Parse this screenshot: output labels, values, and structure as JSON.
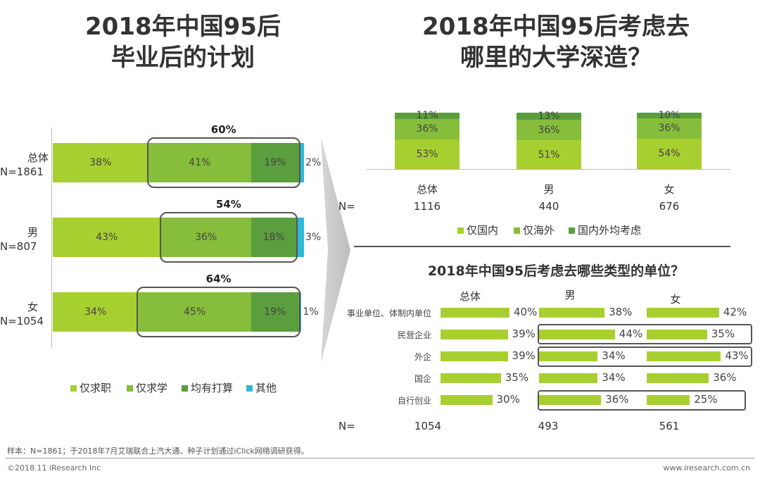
{
  "left": {
    "title_line1": "2018年中国95后",
    "title_line2": "毕业后的计划",
    "rows": [
      {
        "name": "总体",
        "n": "N=1861",
        "values": [
          38,
          41,
          19,
          2
        ],
        "labels": [
          "38%",
          "41%",
          "19%",
          "2%"
        ],
        "highlight": "60%"
      },
      {
        "name": "男",
        "n": "N=807",
        "values": [
          43,
          36,
          18,
          3
        ],
        "labels": [
          "43%",
          "36%",
          "18%",
          "3%"
        ],
        "highlight": "54%"
      },
      {
        "name": "女",
        "n": "N=1054",
        "values": [
          34,
          45,
          19,
          1
        ],
        "labels": [
          "34%",
          "45%",
          "19%",
          "1%"
        ],
        "highlight": "64%"
      }
    ],
    "legend": [
      "仅求职",
      "仅求学",
      "均有打算",
      "其他"
    ]
  },
  "right_top": {
    "title_line1": "2018年中国95后考虑去",
    "title_line2": "哪里的大学深造？",
    "columns": [
      {
        "name": "总体",
        "n": "1116",
        "values": [
          53,
          36,
          11
        ],
        "labels": [
          "53%",
          "36%",
          "11%"
        ]
      },
      {
        "name": "男",
        "n": "440",
        "values": [
          51,
          36,
          13
        ],
        "labels": [
          "51%",
          "36%",
          "13%"
        ]
      },
      {
        "name": "女",
        "n": "676",
        "values": [
          54,
          36,
          10
        ],
        "labels": [
          "54%",
          "36%",
          "10%"
        ]
      }
    ],
    "n_label": "N=",
    "legend": [
      "仅国内",
      "仅海外",
      "国内外均考虑"
    ]
  },
  "right_bottom": {
    "title": "2018年中国95后考虑去哪些类型的单位？",
    "groups": [
      "总体",
      "男",
      "女"
    ],
    "categories": [
      "事业单位、体制内单位",
      "民营企业",
      "外企",
      "国企",
      "自行创业"
    ],
    "values": {
      "总体": [
        40,
        39,
        39,
        35,
        30
      ],
      "男": [
        38,
        44,
        34,
        34,
        36
      ],
      "女": [
        42,
        35,
        43,
        36,
        25
      ]
    },
    "labels": {
      "总体": [
        "40%",
        "39%",
        "39%",
        "35%",
        "30%"
      ],
      "男": [
        "38%",
        "44%",
        "34%",
        "34%",
        "36%"
      ],
      "女": [
        "42%",
        "35%",
        "43%",
        "36%",
        "25%"
      ]
    },
    "n_label": "N=",
    "n_values": [
      "1054",
      "493",
      "561"
    ]
  },
  "footer": {
    "note": "样本：N=1861；于2018年7月艾瑞联合上汽大通、种子计划通过iClick网络调研获得。",
    "copyright": "©2018.11 iResearch Inc",
    "site": "www.iresearch.com.cn"
  },
  "colors": {
    "c1": "#a8cf30",
    "c2": "#86bd3a",
    "c3": "#5b9e3e",
    "c4": "#2fb7d8"
  },
  "chart_data": [
    {
      "type": "bar",
      "orientation": "horizontal-stacked",
      "title": "2018年中国95后毕业后的计划",
      "categories": [
        "总体 N=1861",
        "男 N=807",
        "女 N=1054"
      ],
      "series": [
        {
          "name": "仅求职",
          "values": [
            38,
            43,
            34
          ]
        },
        {
          "name": "仅求学",
          "values": [
            41,
            36,
            45
          ]
        },
        {
          "name": "均有打算",
          "values": [
            19,
            18,
            19
          ]
        },
        {
          "name": "其他",
          "values": [
            2,
            3,
            1
          ]
        }
      ],
      "annotations": [
        "60%",
        "54%",
        "64%"
      ]
    },
    {
      "type": "bar",
      "orientation": "vertical-stacked",
      "title": "2018年中国95后考虑去哪里的大学深造？",
      "categories": [
        "总体",
        "男",
        "女"
      ],
      "n": [
        "1116",
        "440",
        "676"
      ],
      "series": [
        {
          "name": "仅国内",
          "values": [
            53,
            51,
            54
          ]
        },
        {
          "name": "仅海外",
          "values": [
            36,
            36,
            36
          ]
        },
        {
          "name": "国内外均考虑",
          "values": [
            11,
            13,
            10
          ]
        }
      ]
    },
    {
      "type": "bar",
      "orientation": "horizontal",
      "title": "2018年中国95后考虑去哪些类型的单位？",
      "categories": [
        "事业单位、体制内单位",
        "民营企业",
        "外企",
        "国企",
        "自行创业"
      ],
      "series": [
        {
          "name": "总体",
          "values": [
            40,
            39,
            39,
            35,
            30
          ]
        },
        {
          "name": "男",
          "values": [
            38,
            44,
            34,
            34,
            36
          ]
        },
        {
          "name": "女",
          "values": [
            42,
            35,
            43,
            36,
            25
          ]
        }
      ],
      "n": [
        "1054",
        "493",
        "561"
      ]
    }
  ]
}
